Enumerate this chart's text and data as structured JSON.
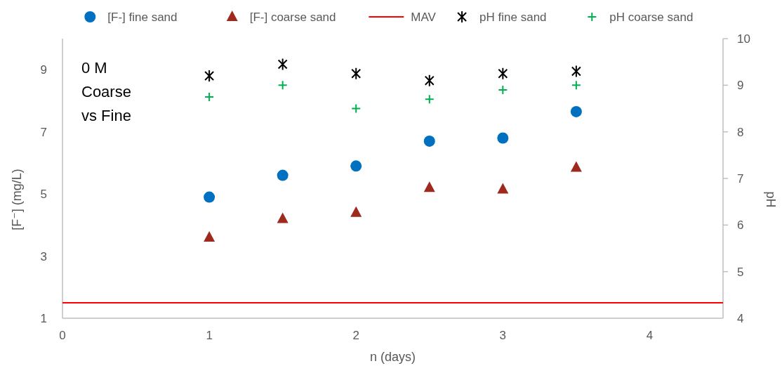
{
  "chart_data": {
    "type": "scatter",
    "xlabel": "n (days)",
    "ylabel": "[F⁻]  (mg/L)",
    "y2label": "pH",
    "annotations": [
      "0 M\nCoarse\nvs Fine"
    ],
    "xlim": [
      0,
      4.5
    ],
    "xticks": [
      0,
      1,
      2,
      3,
      4
    ],
    "ylim": [
      1,
      10
    ],
    "yticks": [
      1,
      3,
      5,
      7,
      9
    ],
    "y2lim": [
      4,
      10
    ],
    "y2ticks": [
      4,
      5,
      6,
      7,
      8,
      9,
      10
    ],
    "grid": false,
    "legend": "top",
    "series": [
      {
        "name": "[F-] fine sand",
        "color": "#0070c0",
        "marker": "circle",
        "x": [
          1,
          1.5,
          2,
          2.5,
          3,
          3.5
        ],
        "values": [
          4.9,
          5.6,
          5.9,
          6.7,
          6.8,
          7.65
        ]
      },
      {
        "name": "[F-] coarse sand",
        "color": "#9e2a1e",
        "marker": "triangle",
        "x": [
          1,
          1.5,
          2,
          2.5,
          3,
          3.5
        ],
        "values": [
          3.6,
          4.2,
          4.4,
          5.2,
          5.15,
          5.85
        ]
      },
      {
        "name": "MAV",
        "type": "line",
        "color": "#ff0000",
        "marker": "none",
        "x": [
          0,
          4.5
        ],
        "values": [
          1.5,
          1.5
        ]
      },
      {
        "name": "pH fine sand",
        "color": "#000000",
        "axis": "y2",
        "x": [
          1,
          1.5,
          2,
          2.5,
          3,
          3.5
        ],
        "values": [
          9.2,
          9.45,
          9.25,
          9.1,
          9.25,
          9.3
        ]
      },
      {
        "name": "pH coarse sand",
        "color": "#00b050",
        "marker": "cross",
        "axis": "y2",
        "x": [
          1,
          1.5,
          2,
          2.5,
          3,
          3.5
        ],
        "values": [
          8.75,
          9.0,
          8.5,
          8.7,
          8.9,
          9.0
        ]
      }
    ]
  }
}
